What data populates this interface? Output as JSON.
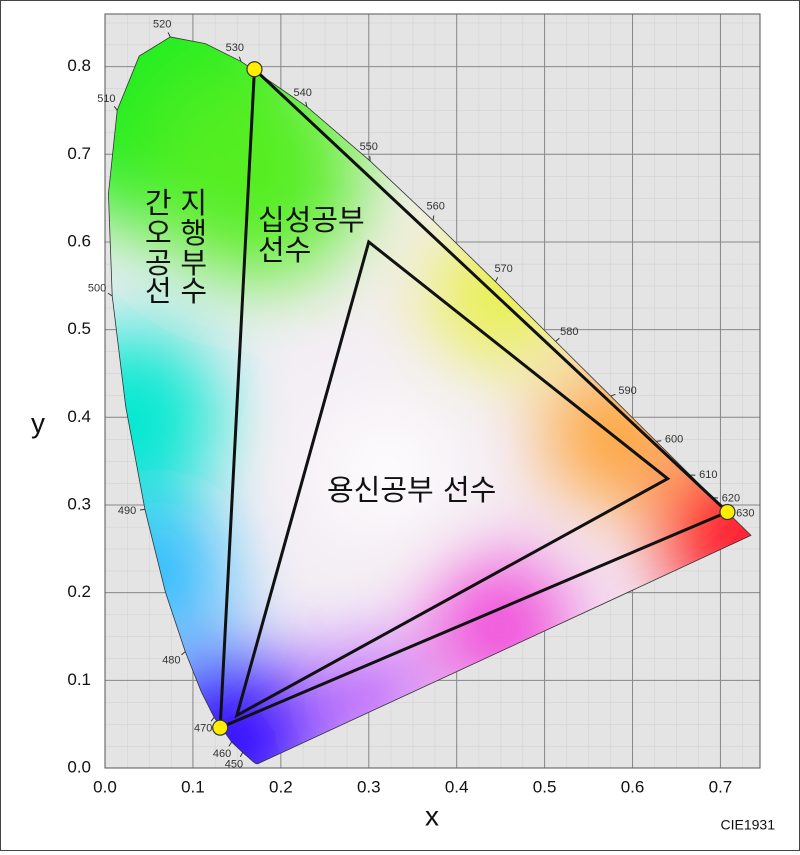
{
  "chart_data": {
    "type": "chromaticity",
    "xlabel": "x",
    "ylabel": "y",
    "footnote": "CIE1931",
    "xlim": [
      0,
      0.745
    ],
    "ylim": [
      0,
      0.86
    ],
    "xticks": [
      {
        "value": 0,
        "label": "0.0"
      },
      0.1,
      0.2,
      0.3,
      0.4,
      0.5,
      0.6,
      0.7
    ],
    "yticks": [
      {
        "value": 0,
        "label": "0.0"
      },
      0.1,
      0.2,
      0.3,
      0.4,
      0.5,
      0.6,
      0.7,
      0.8
    ],
    "grid": true,
    "spectral_locus": {
      "x": [
        0.1741,
        0.1733,
        0.1714,
        0.1689,
        0.1644,
        0.1566,
        0.144,
        0.1241,
        0.1096,
        0.0913,
        0.0687,
        0.0454,
        0.0235,
        0.0082,
        0.0039,
        0.0139,
        0.0389,
        0.0743,
        0.1142,
        0.1547,
        0.2296,
        0.3016,
        0.3731,
        0.4441,
        0.5125,
        0.5752,
        0.627,
        0.6658,
        0.6915,
        0.7079,
        0.719,
        0.7347
      ],
      "y": [
        0.005,
        0.0048,
        0.0051,
        0.0069,
        0.0109,
        0.0177,
        0.0297,
        0.0578,
        0.0868,
        0.1327,
        0.2007,
        0.295,
        0.4127,
        0.5384,
        0.6548,
        0.7502,
        0.812,
        0.8338,
        0.8262,
        0.8059,
        0.7543,
        0.6923,
        0.6245,
        0.5547,
        0.4866,
        0.4242,
        0.3725,
        0.334,
        0.3083,
        0.292,
        0.2809,
        0.2653
      ],
      "wavelengths": [
        null,
        null,
        null,
        null,
        null,
        450,
        460,
        470,
        null,
        480,
        null,
        490,
        null,
        500,
        null,
        510,
        null,
        520,
        null,
        530,
        540,
        550,
        560,
        570,
        580,
        590,
        600,
        610,
        620,
        630,
        null,
        null
      ]
    },
    "series": [
      {
        "x": [
          0.708,
          0.17,
          0.131
        ],
        "y": [
          0.292,
          0.797,
          0.046
        ],
        "color": "#111111",
        "markers": true,
        "marker_color": "#ffee00"
      },
      {
        "x": [
          0.64,
          0.3,
          0.15
        ],
        "y": [
          0.33,
          0.6,
          0.06
        ],
        "color": "#111111",
        "markers": false
      }
    ],
    "annotations": [
      {
        "lines": [
          "간지",
          "오행",
          "공부",
          "선수"
        ]
      },
      {
        "lines": [
          "십성공부",
          "선수"
        ]
      },
      {
        "lines": [
          "용신공부 선수"
        ]
      }
    ]
  }
}
